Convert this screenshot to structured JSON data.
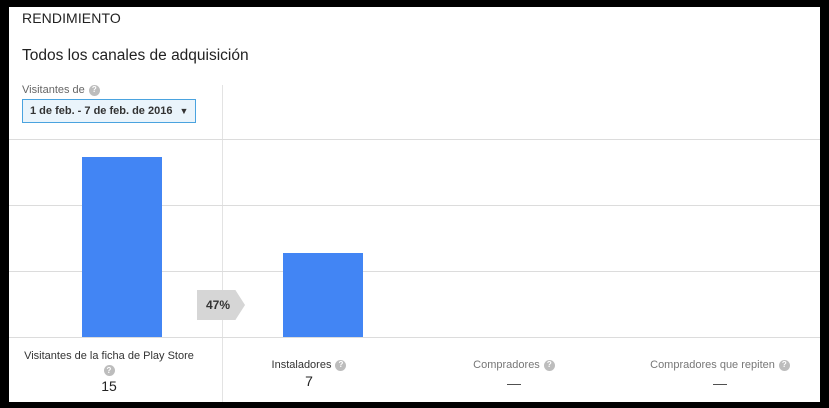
{
  "section_title": "RENDIMIENTO",
  "headline": "Todos los canales de adquisición",
  "visitors_label": "Visitantes de",
  "date_range": "1 de feb. - 7 de feb. de 2016",
  "conversion_rate": "47%",
  "metrics": [
    {
      "label": "Visitantes de la ficha de Play Store",
      "value": "15"
    },
    {
      "label": "Instaladores",
      "value": "7"
    },
    {
      "label": "Compradores",
      "value": "—"
    },
    {
      "label": "Compradores que repiten",
      "value": "—"
    }
  ],
  "colors": {
    "bar": "#4285f4",
    "accent_border": "#4aa3df"
  },
  "chart_data": {
    "type": "bar",
    "categories": [
      "Visitantes de la ficha de Play Store",
      "Instaladores",
      "Compradores",
      "Compradores que repiten"
    ],
    "values": [
      15,
      7,
      null,
      null
    ],
    "ylim": [
      0,
      16.5
    ],
    "grid": true
  }
}
